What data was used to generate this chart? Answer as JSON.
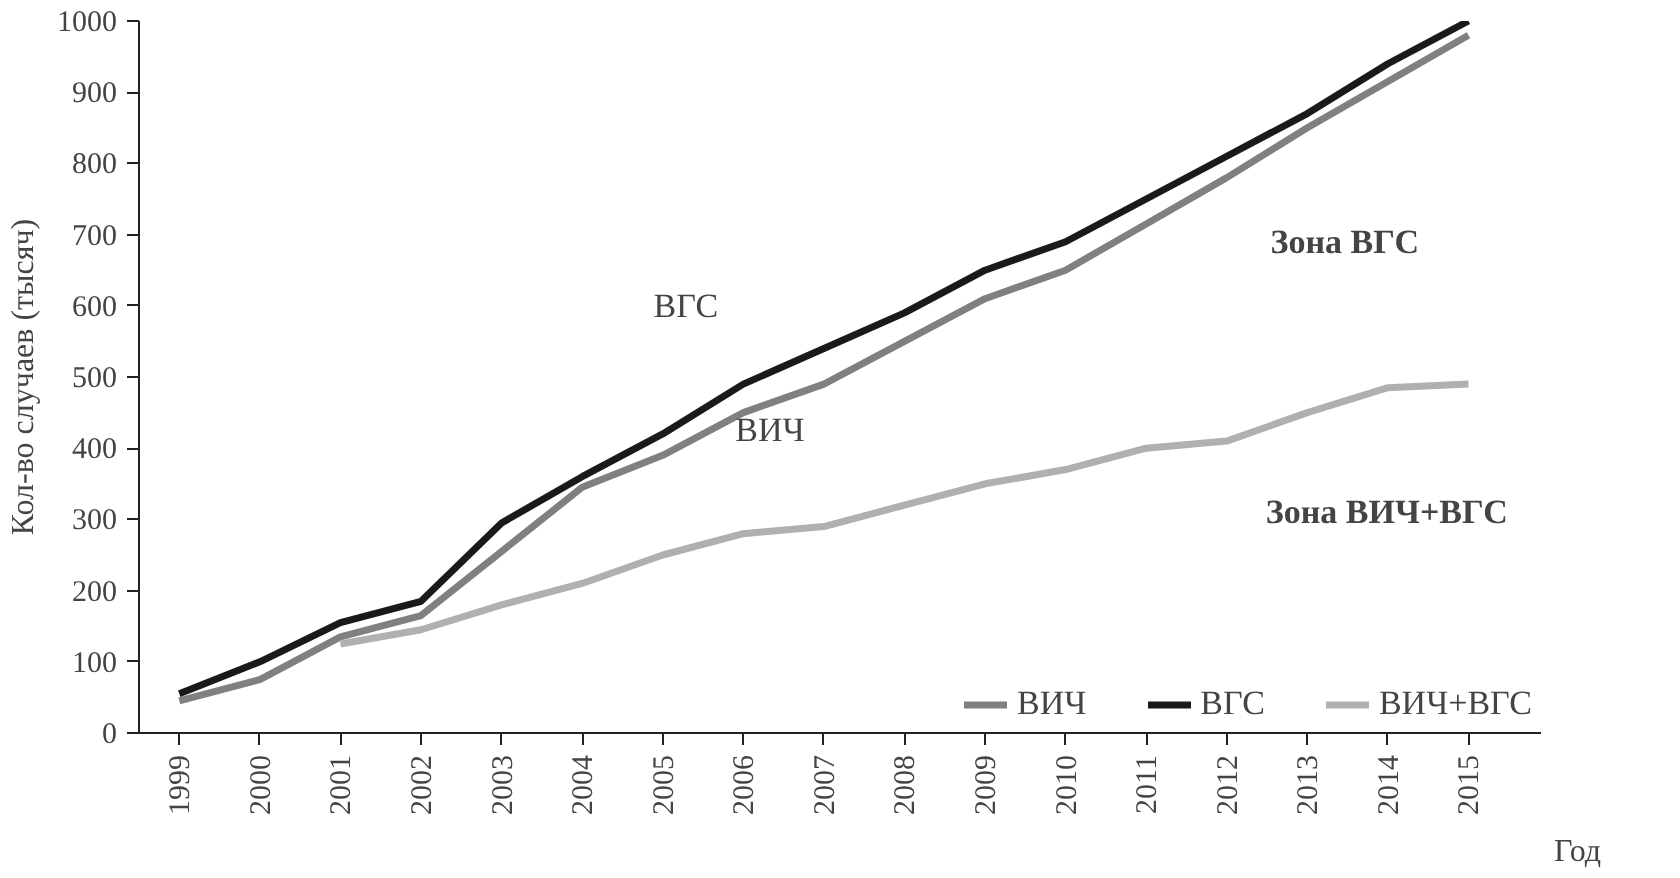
{
  "chart_data": {
    "type": "line",
    "xlabel": "Год",
    "ylabel": "Кол-во случаев (тысяч)",
    "x": [
      1999,
      2000,
      2001,
      2002,
      2003,
      2004,
      2005,
      2006,
      2007,
      2008,
      2009,
      2010,
      2011,
      2012,
      2013,
      2014,
      2015
    ],
    "series": [
      {
        "name": "ВИЧ",
        "color": "#808080",
        "values": [
          45,
          75,
          135,
          165,
          255,
          345,
          390,
          450,
          490,
          550,
          610,
          650,
          715,
          780,
          850,
          915,
          980
        ]
      },
      {
        "name": "ВГС",
        "color": "#1a1a1a",
        "values": [
          55,
          100,
          155,
          185,
          295,
          360,
          420,
          490,
          540,
          590,
          650,
          690,
          750,
          810,
          870,
          940,
          1000
        ]
      },
      {
        "name": "ВИЧ+ВГС",
        "color": "#b0b0b0",
        "values": [
          null,
          null,
          125,
          145,
          180,
          210,
          250,
          280,
          290,
          320,
          350,
          370,
          400,
          410,
          450,
          485,
          490
        ]
      }
    ],
    "annotations": [
      "ВГС",
      "ВИЧ",
      "Зона ВГС",
      "Зона ВИЧ+ВГС"
    ],
    "xlim": [
      1998.5,
      2015.9
    ],
    "ylim": [
      0,
      1000
    ],
    "xticks": [
      1999,
      2000,
      2001,
      2002,
      2003,
      2004,
      2005,
      2006,
      2007,
      2008,
      2009,
      2010,
      2011,
      2012,
      2013,
      2014,
      2015
    ],
    "yticks": [
      0,
      100,
      200,
      300,
      400,
      500,
      600,
      700,
      800,
      900,
      1000
    ],
    "grid": false,
    "legend": "bottom right",
    "marker": "none",
    "line_style": "solid"
  }
}
